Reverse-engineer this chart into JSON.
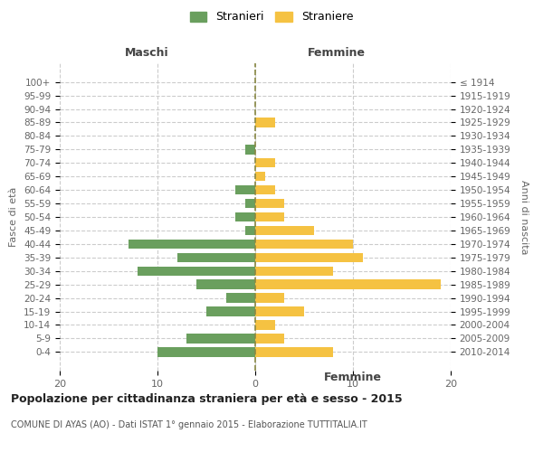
{
  "age_groups": [
    "100+",
    "95-99",
    "90-94",
    "85-89",
    "80-84",
    "75-79",
    "70-74",
    "65-69",
    "60-64",
    "55-59",
    "50-54",
    "45-49",
    "40-44",
    "35-39",
    "30-34",
    "25-29",
    "20-24",
    "15-19",
    "10-14",
    "5-9",
    "0-4"
  ],
  "birth_years": [
    "≤ 1914",
    "1915-1919",
    "1920-1924",
    "1925-1929",
    "1930-1934",
    "1935-1939",
    "1940-1944",
    "1945-1949",
    "1950-1954",
    "1955-1959",
    "1960-1964",
    "1965-1969",
    "1970-1974",
    "1975-1979",
    "1980-1984",
    "1985-1989",
    "1990-1994",
    "1995-1999",
    "2000-2004",
    "2005-2009",
    "2010-2014"
  ],
  "maschi": [
    0,
    0,
    0,
    0,
    0,
    1,
    0,
    0,
    2,
    1,
    2,
    1,
    13,
    8,
    12,
    6,
    3,
    5,
    0,
    7,
    10
  ],
  "femmine": [
    0,
    0,
    0,
    2,
    0,
    0,
    2,
    1,
    2,
    3,
    3,
    6,
    10,
    11,
    8,
    19,
    3,
    5,
    2,
    3,
    8
  ],
  "color_maschi": "#6a9f5e",
  "color_femmine": "#f5c242",
  "title": "Popolazione per cittadinanza straniera per età e sesso - 2015",
  "subtitle": "COMUNE DI AYAS (AO) - Dati ISTAT 1° gennaio 2015 - Elaborazione TUTTITALIA.IT",
  "xlabel_left": "Maschi",
  "xlabel_right": "Femmine",
  "ylabel_left": "Fasce di età",
  "ylabel_right": "Anni di nascita",
  "legend_maschi": "Stranieri",
  "legend_femmine": "Straniere",
  "xlim": 20,
  "background_color": "#ffffff",
  "grid_color": "#cccccc"
}
